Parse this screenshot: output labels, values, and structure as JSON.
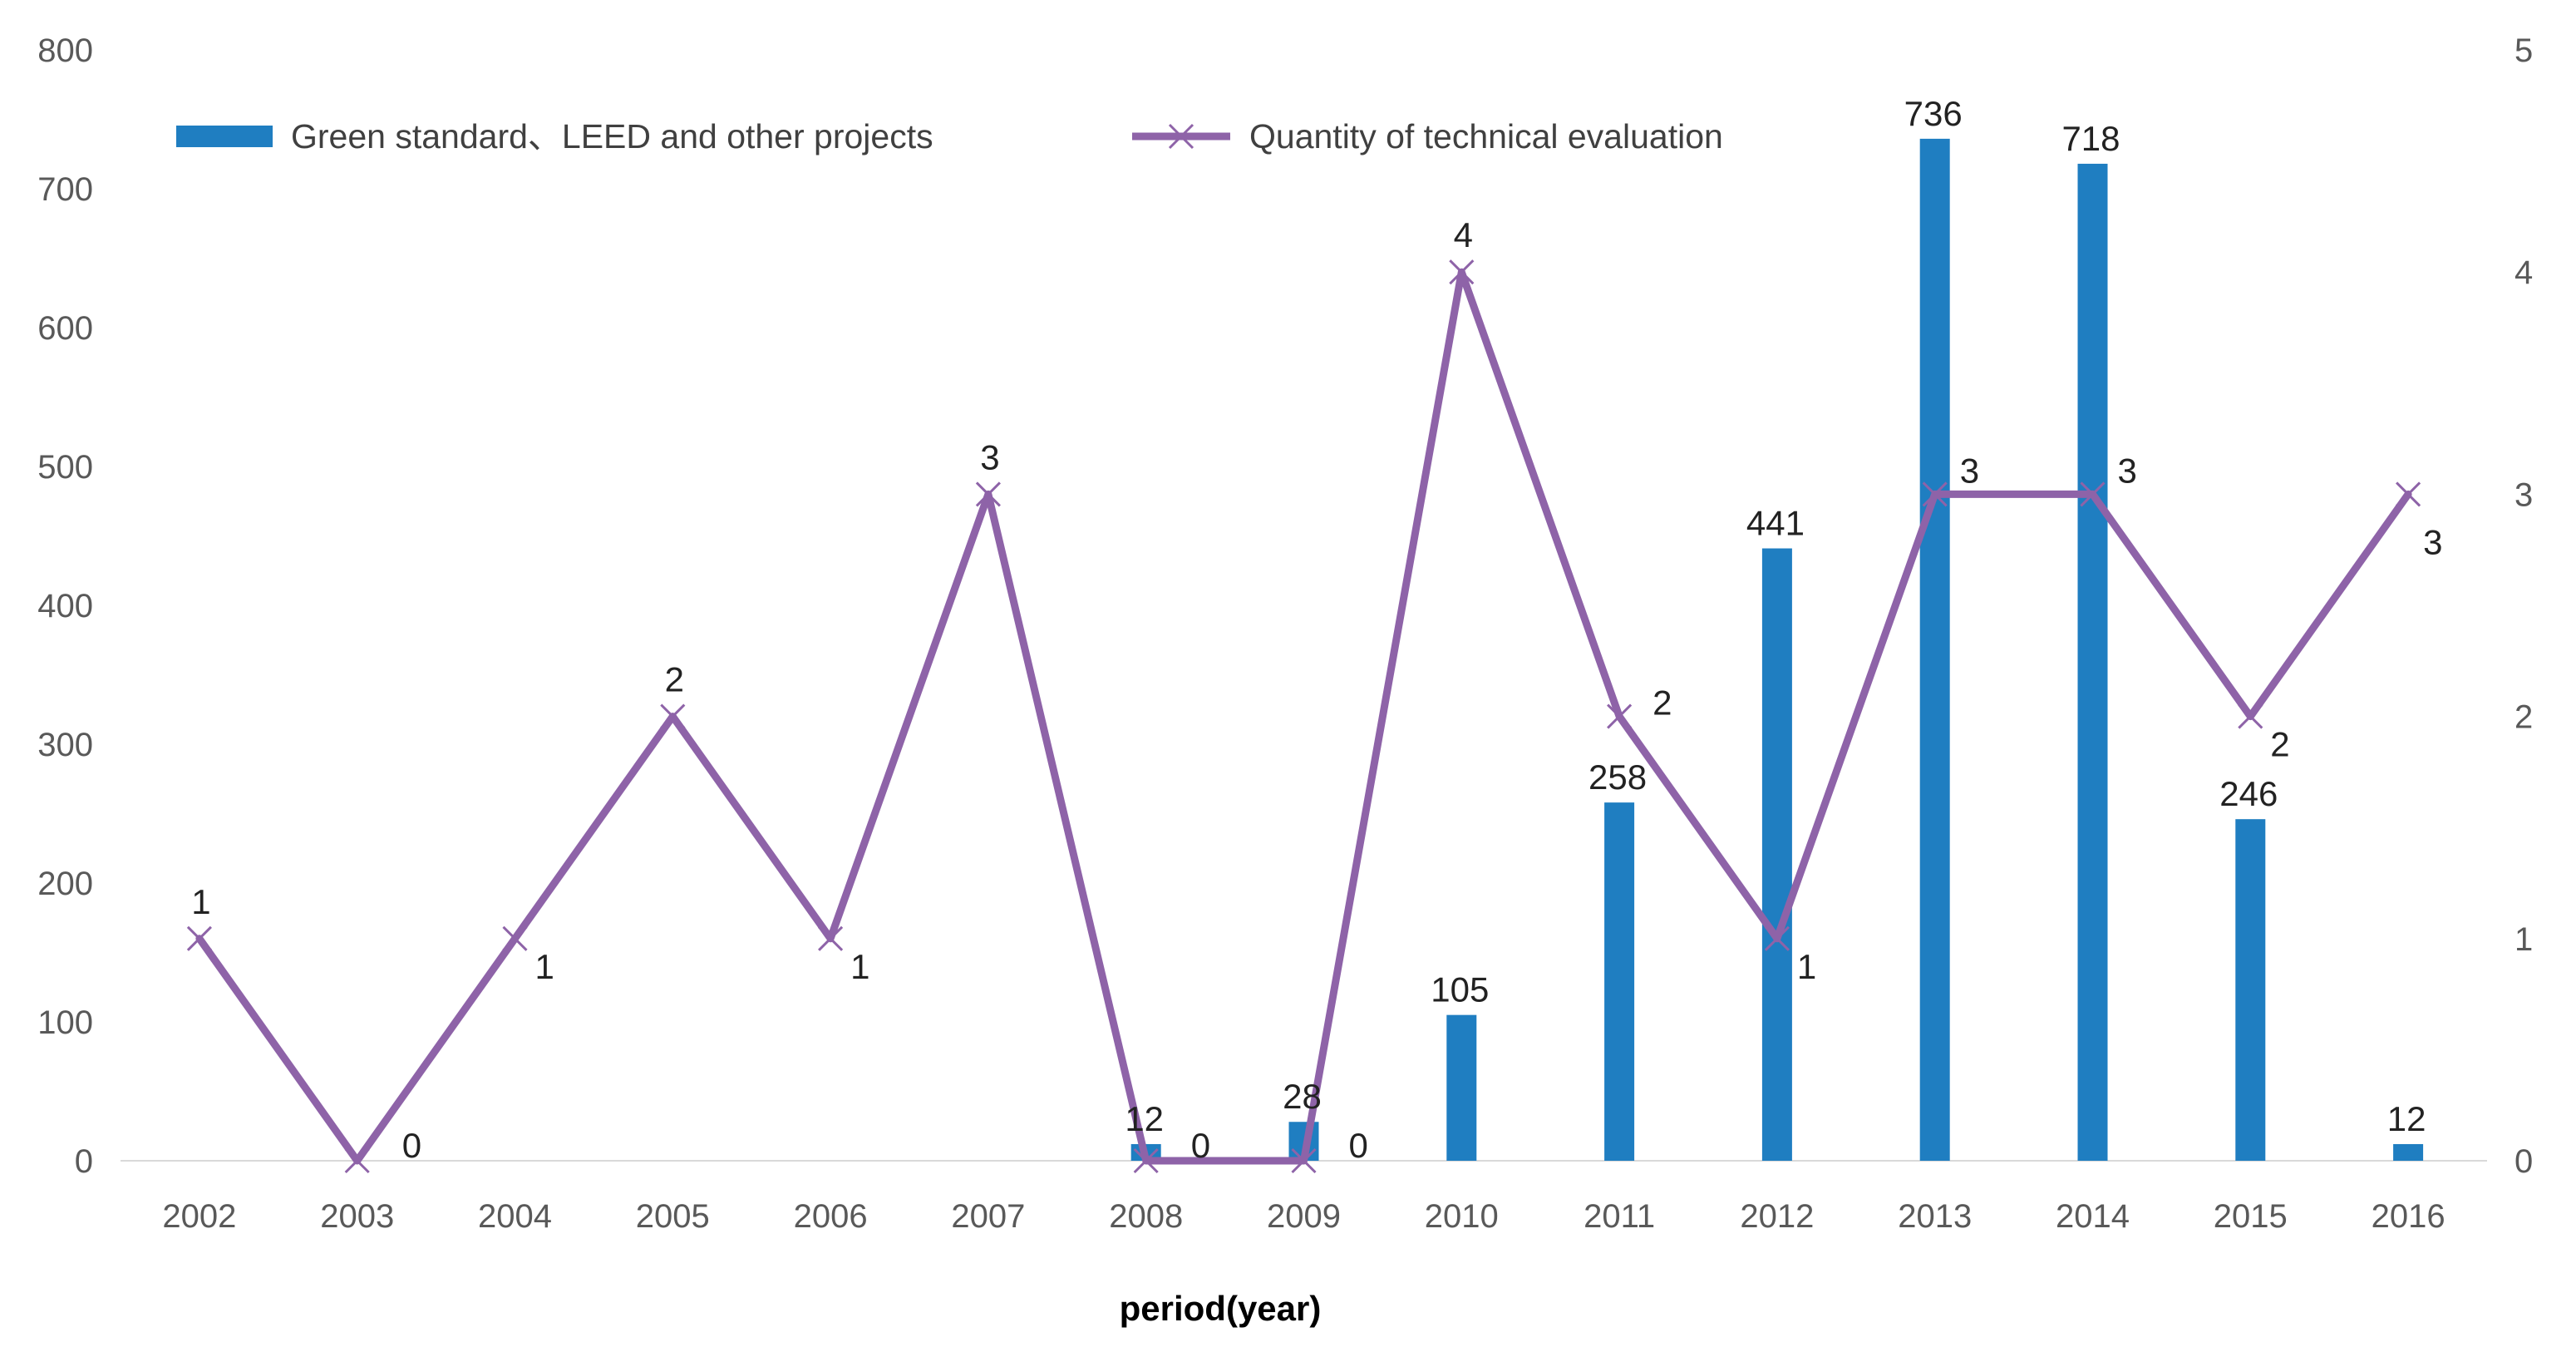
{
  "chart_data": {
    "type": "bar",
    "categories": [
      "2002",
      "2003",
      "2004",
      "2005",
      "2006",
      "2007",
      "2008",
      "2009",
      "2010",
      "2011",
      "2012",
      "2013",
      "2014",
      "2015",
      "2016"
    ],
    "series": [
      {
        "name": "Green standard、LEED and other projects",
        "type": "bar",
        "axis": "left",
        "color": "#1f7ec1",
        "values": [
          null,
          null,
          null,
          null,
          null,
          null,
          12,
          28,
          105,
          258,
          441,
          736,
          718,
          246,
          12
        ]
      },
      {
        "name": "Quantity of technical evaluation",
        "type": "line",
        "axis": "right",
        "color": "#8e63a8",
        "values": [
          1,
          0,
          1,
          2,
          1,
          3,
          0,
          0,
          4,
          2,
          1,
          3,
          3,
          2,
          3
        ]
      }
    ],
    "left_axis": {
      "min": 0,
      "max": 800,
      "step": 100,
      "ticks": [
        "0",
        "100",
        "200",
        "300",
        "400",
        "500",
        "600",
        "700",
        "800"
      ]
    },
    "right_axis": {
      "min": 0,
      "max": 5,
      "step": 1,
      "ticks": [
        "0",
        "1",
        "2",
        "3",
        "4",
        "5"
      ]
    },
    "xlabel": "period(year)",
    "ylabel": "",
    "legend": {
      "placement": "top-left"
    },
    "grid": false
  }
}
